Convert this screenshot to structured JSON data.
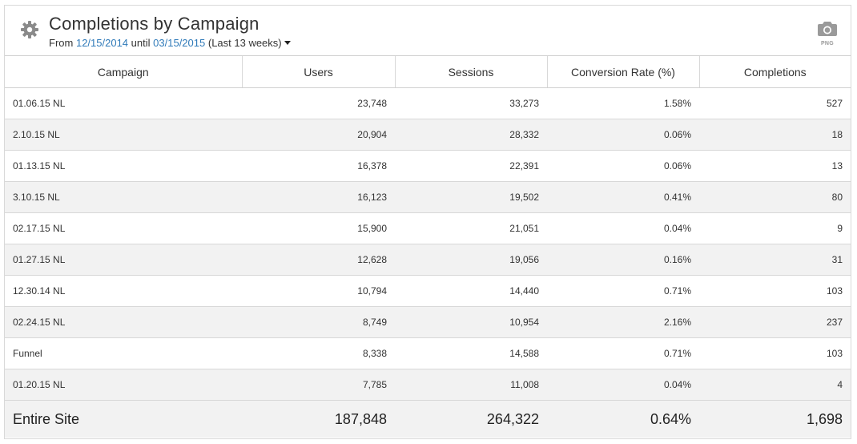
{
  "widget": {
    "title": "Completions by Campaign",
    "subtitle": {
      "from_label": "From",
      "start_date": "12/15/2014",
      "until_label": "until",
      "end_date": "03/15/2015",
      "range_label": "(Last 13 weeks)"
    },
    "export_label": "PNG",
    "icons": {
      "settings": "gear-icon",
      "export": "camera-icon",
      "range": "caret-down-icon"
    },
    "colors": {
      "link": "#2f7ab9",
      "stripe": "#f2f2f2"
    }
  },
  "table": {
    "columns": [
      "Campaign",
      "Users",
      "Sessions",
      "Conversion Rate (%)",
      "Completions"
    ],
    "rows": [
      [
        "01.06.15 NL",
        "23,748",
        "33,273",
        "1.58%",
        "527"
      ],
      [
        "2.10.15 NL",
        "20,904",
        "28,332",
        "0.06%",
        "18"
      ],
      [
        "01.13.15 NL",
        "16,378",
        "22,391",
        "0.06%",
        "13"
      ],
      [
        "3.10.15 NL",
        "16,123",
        "19,502",
        "0.41%",
        "80"
      ],
      [
        "02.17.15 NL",
        "15,900",
        "21,051",
        "0.04%",
        "9"
      ],
      [
        "01.27.15 NL",
        "12,628",
        "19,056",
        "0.16%",
        "31"
      ],
      [
        "12.30.14 NL",
        "10,794",
        "14,440",
        "0.71%",
        "103"
      ],
      [
        "02.24.15 NL",
        "8,749",
        "10,954",
        "2.16%",
        "237"
      ],
      [
        "Funnel",
        "8,338",
        "14,588",
        "0.71%",
        "103"
      ],
      [
        "01.20.15 NL",
        "7,785",
        "11,008",
        "0.04%",
        "4"
      ]
    ],
    "total": [
      "Entire Site",
      "187,848",
      "264,322",
      "0.64%",
      "1,698"
    ]
  }
}
